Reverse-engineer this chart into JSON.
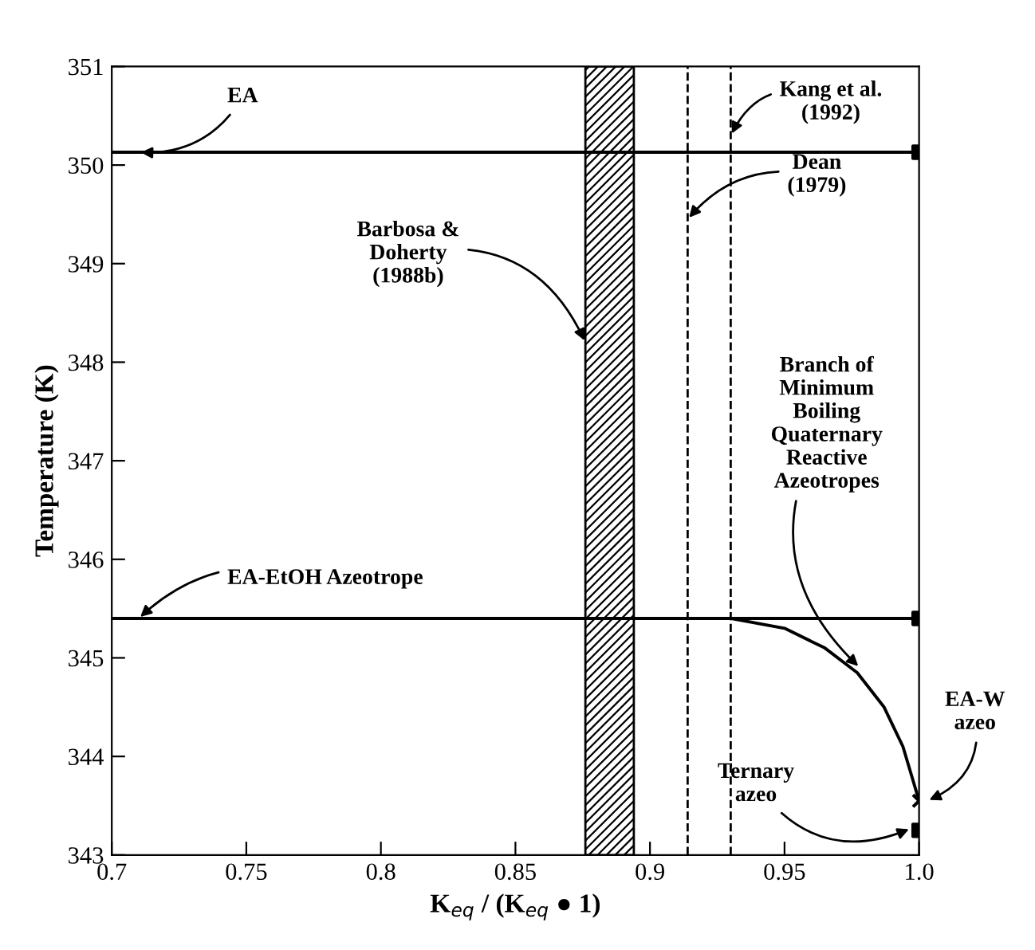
{
  "chart_data": {
    "type": "line",
    "xlabel": "K$_{eq}$ / (K$_{eq}$ ● 1)",
    "ylabel": "Temperature (K)",
    "xlim": [
      0.7,
      1.0
    ],
    "ylim": [
      343,
      351
    ],
    "xticks": [
      0.7,
      0.75,
      0.8,
      0.85,
      0.9,
      0.95,
      {
        "value": 1.0,
        "label": "1.0"
      }
    ],
    "yticks": [
      343,
      344,
      345,
      346,
      347,
      348,
      349,
      350,
      351
    ],
    "grid": false,
    "legend": false,
    "series": [
      {
        "color": "#000000",
        "x": [
          0.7,
          1.0
        ],
        "values": [
          350.13,
          350.13
        ],
        "marker": "none",
        "line_style": "solid"
      },
      {
        "color": "#000000",
        "x": [
          0.7,
          1.0
        ],
        "values": [
          345.4,
          345.4
        ],
        "marker": "none",
        "line_style": "solid"
      },
      {
        "color": "#000000",
        "x": [
          0.93,
          0.95,
          0.965,
          0.977,
          0.987,
          0.994,
          1.0
        ],
        "values": [
          345.4,
          345.3,
          345.1,
          344.85,
          344.5,
          344.1,
          343.55
        ],
        "marker": "none",
        "line_style": "solid"
      },
      {
        "type": "scatter",
        "color": "#000000",
        "x": [
          1.0,
          1.0,
          1.0
        ],
        "values": [
          350.13,
          345.4,
          343.25
        ],
        "marker": "square"
      },
      {
        "type": "scatter",
        "color": "#000000",
        "x": [
          1.0
        ],
        "values": [
          343.55
        ],
        "marker": "cross"
      }
    ],
    "bands": [
      {
        "axis": "x",
        "from": 0.876,
        "to": 0.894,
        "color": "#000000"
      }
    ],
    "ref_lines": [
      {
        "axis": "x",
        "value": 0.914,
        "line_style": "dashed",
        "color": "#000000"
      },
      {
        "axis": "x",
        "value": 0.93,
        "line_style": "dashed",
        "color": "#000000"
      }
    ],
    "annotations": [
      {
        "text": "EA",
        "x": 0.71,
        "y": 350.13
      },
      {
        "text": "EA-EtOH Azeotrope",
        "x": 0.71,
        "y": 345.4
      },
      {
        "text": "Barbosa &\nDoherty\n(1988b)",
        "x": 0.876,
        "y": 348.2
      },
      {
        "text": "Kang et al.\n(1992)",
        "x": 0.93,
        "y": 350.3
      },
      {
        "text": "Dean\n(1979)",
        "x": 0.914,
        "y": 349.45
      },
      {
        "text": "Branch of\nMinimum\nBoiling\nQuaternary\nReactive\nAzeotropes",
        "x": 0.978,
        "y": 344.9
      },
      {
        "text": "Ternary\nazeo",
        "x": 0.997,
        "y": 343.27
      },
      {
        "text": "EA-W\nazeo",
        "x": 1.003,
        "y": 343.55
      }
    ]
  }
}
